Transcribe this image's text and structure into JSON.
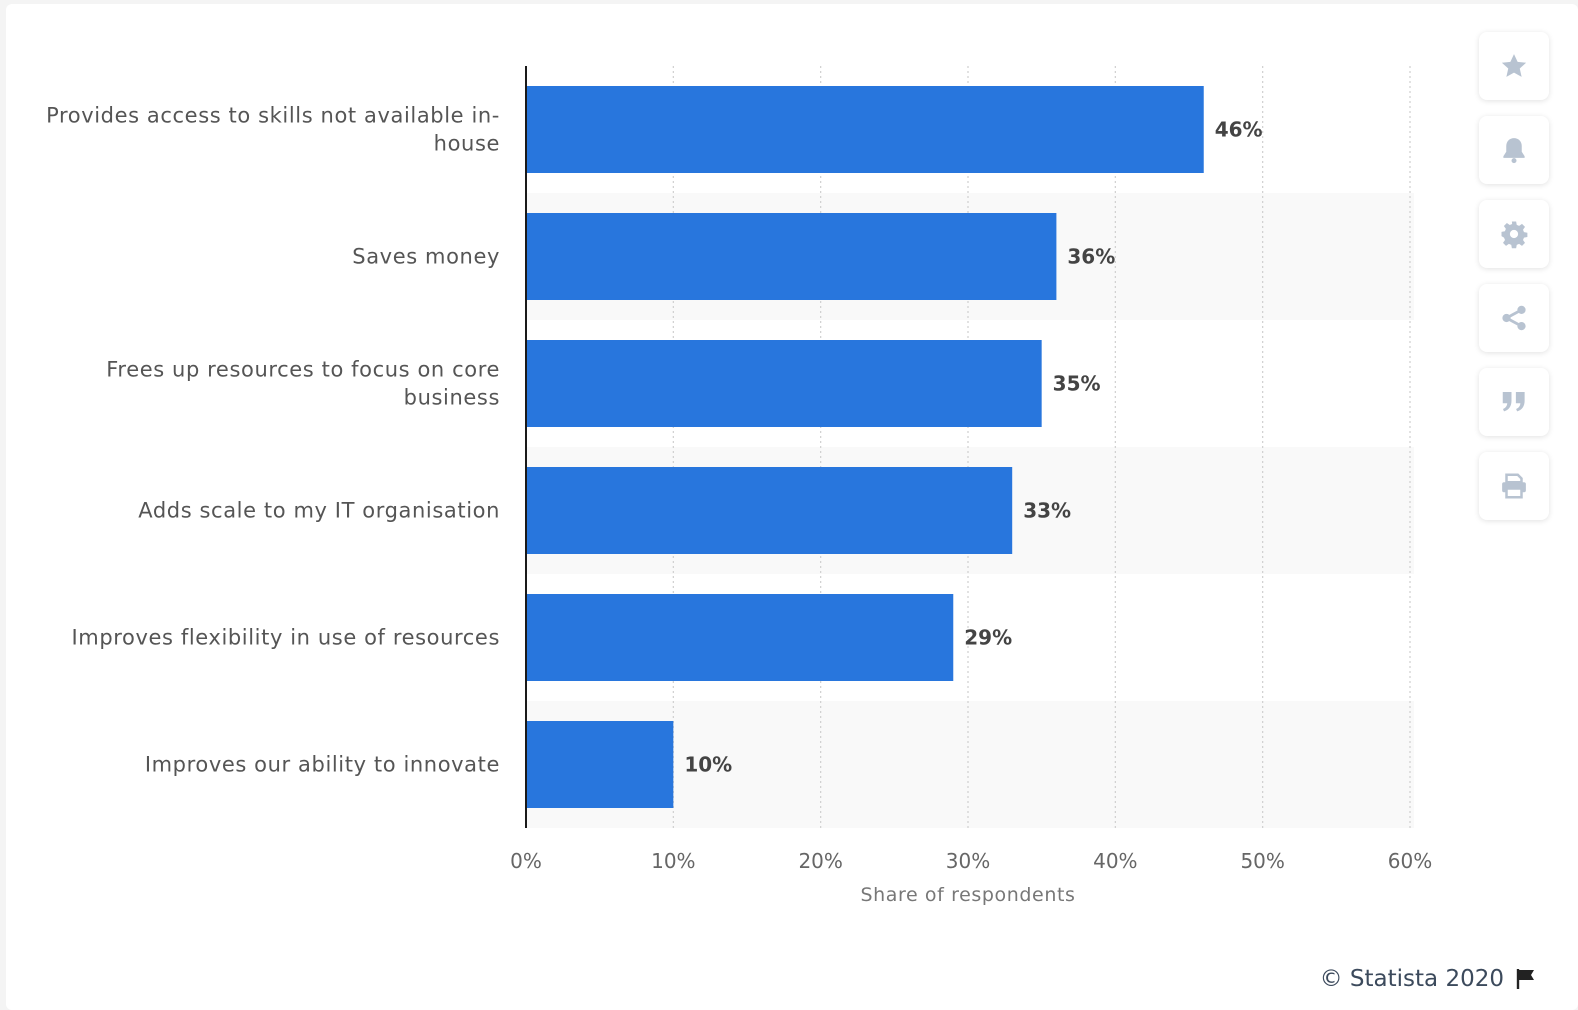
{
  "chart_data": {
    "type": "bar",
    "orientation": "horizontal",
    "categories": [
      [
        "Provides access to skills not available in-",
        "house"
      ],
      [
        "Saves money"
      ],
      [
        "Frees up resources to focus on core",
        "business"
      ],
      [
        "Adds scale to my IT organisation"
      ],
      [
        "Improves flexibility in use of resources"
      ],
      [
        "Improves our ability to innovate"
      ]
    ],
    "values": [
      46,
      36,
      35,
      33,
      29,
      10
    ],
    "value_labels": [
      "46%",
      "36%",
      "35%",
      "33%",
      "29%",
      "10%"
    ],
    "xlabel": "Share of respondents",
    "ylabel": "",
    "xlim": [
      0,
      60
    ],
    "ticks": [
      0,
      10,
      20,
      30,
      40,
      50,
      60
    ],
    "tick_labels": [
      "0%",
      "10%",
      "20%",
      "30%",
      "40%",
      "50%",
      "60%"
    ],
    "grid": true,
    "bar_color": "#2876dd",
    "band_color": "#f9f9f9"
  },
  "toolbar": {
    "buttons": [
      {
        "name": "favorite-button",
        "icon": "star-icon"
      },
      {
        "name": "notification-button",
        "icon": "bell-icon"
      },
      {
        "name": "settings-button",
        "icon": "gear-icon"
      },
      {
        "name": "share-button",
        "icon": "share-icon"
      },
      {
        "name": "cite-button",
        "icon": "quote-icon"
      },
      {
        "name": "print-button",
        "icon": "printer-icon"
      }
    ],
    "icon_color": "#b8c3d1"
  },
  "credit": {
    "text": "© Statista 2020",
    "icon": "flag-icon"
  }
}
